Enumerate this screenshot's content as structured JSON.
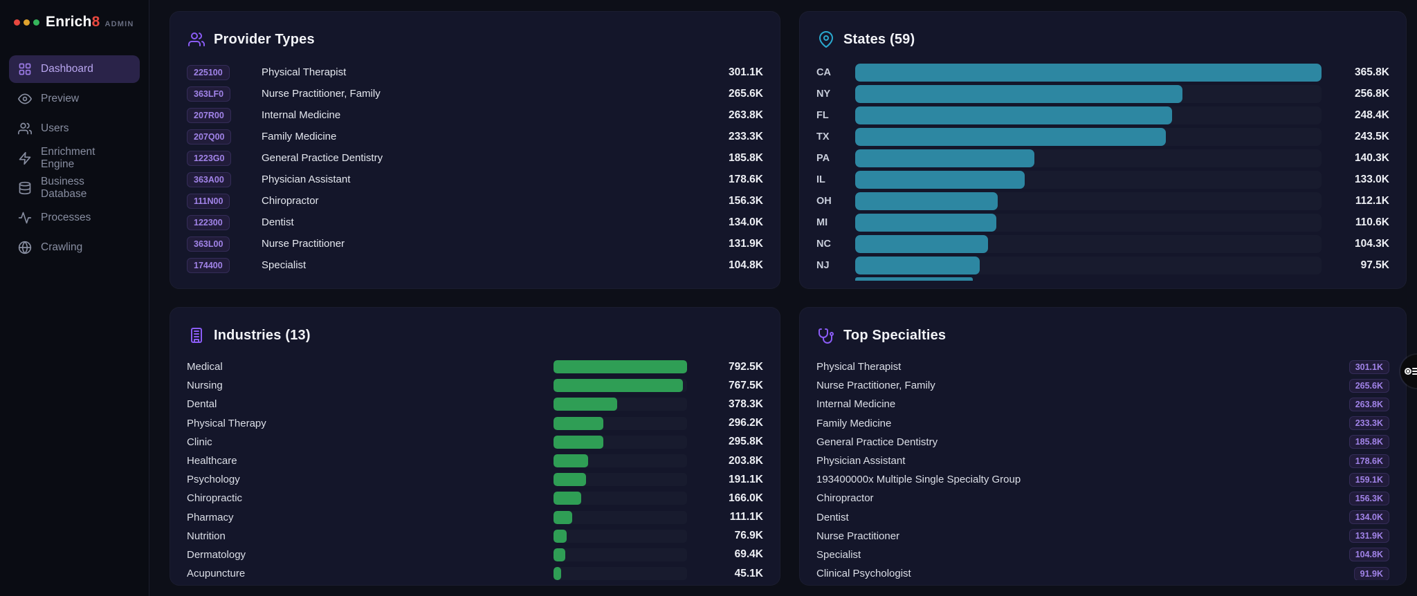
{
  "brand": {
    "name": "Enrich",
    "eight": "8",
    "suffix": "ADMIN"
  },
  "sidebar": {
    "items": [
      {
        "id": "dashboard",
        "label": "Dashboard",
        "icon": "grid-icon",
        "active": true
      },
      {
        "id": "preview",
        "label": "Preview",
        "icon": "eye-icon",
        "active": false
      },
      {
        "id": "users",
        "label": "Users",
        "icon": "users-icon",
        "active": false
      },
      {
        "id": "enrichment-engine",
        "label": "Enrichment Engine",
        "icon": "zap-icon",
        "active": false
      },
      {
        "id": "business-database",
        "label": "Business Database",
        "icon": "database-icon",
        "active": false
      },
      {
        "id": "processes",
        "label": "Processes",
        "icon": "activity-icon",
        "active": false
      },
      {
        "id": "crawling",
        "label": "Crawling",
        "icon": "globe-icon",
        "active": false
      }
    ]
  },
  "cards": {
    "provider_types": {
      "title": "Provider Types",
      "icon": "users-icon",
      "rows": [
        {
          "code": "225100",
          "name": "Physical Therapist",
          "value": "301.1K"
        },
        {
          "code": "363LF0",
          "name": "Nurse Practitioner, Family",
          "value": "265.6K"
        },
        {
          "code": "207R00",
          "name": "Internal Medicine",
          "value": "263.8K"
        },
        {
          "code": "207Q00",
          "name": "Family Medicine",
          "value": "233.3K"
        },
        {
          "code": "1223G0",
          "name": "General Practice Dentistry",
          "value": "185.8K"
        },
        {
          "code": "363A00",
          "name": "Physician Assistant",
          "value": "178.6K"
        },
        {
          "code": "111N00",
          "name": "Chiropractor",
          "value": "156.3K"
        },
        {
          "code": "122300",
          "name": "Dentist",
          "value": "134.0K"
        },
        {
          "code": "363L00",
          "name": "Nurse Practitioner",
          "value": "131.9K"
        },
        {
          "code": "174400",
          "name": "Specialist",
          "value": "104.8K"
        }
      ]
    },
    "states": {
      "title": "States (59)",
      "icon": "map-pin-icon",
      "bar_color": "#2d87a2",
      "max": 365.8,
      "rows": [
        {
          "label": "CA",
          "num": 365.8,
          "value": "365.8K"
        },
        {
          "label": "NY",
          "num": 256.8,
          "value": "256.8K"
        },
        {
          "label": "FL",
          "num": 248.4,
          "value": "248.4K"
        },
        {
          "label": "TX",
          "num": 243.5,
          "value": "243.5K"
        },
        {
          "label": "PA",
          "num": 140.3,
          "value": "140.3K"
        },
        {
          "label": "IL",
          "num": 133.0,
          "value": "133.0K"
        },
        {
          "label": "OH",
          "num": 112.1,
          "value": "112.1K"
        },
        {
          "label": "MI",
          "num": 110.6,
          "value": "110.6K"
        },
        {
          "label": "NC",
          "num": 104.3,
          "value": "104.3K"
        },
        {
          "label": "NJ",
          "num": 97.5,
          "value": "97.5K"
        }
      ]
    },
    "industries": {
      "title": "Industries (13)",
      "icon": "building-icon",
      "bar_color": "#2f9e55",
      "max": 792.5,
      "rows": [
        {
          "name": "Medical",
          "num": 792.5,
          "value": "792.5K"
        },
        {
          "name": "Nursing",
          "num": 767.5,
          "value": "767.5K"
        },
        {
          "name": "Dental",
          "num": 378.3,
          "value": "378.3K"
        },
        {
          "name": "Physical Therapy",
          "num": 296.2,
          "value": "296.2K"
        },
        {
          "name": "Clinic",
          "num": 295.8,
          "value": "295.8K"
        },
        {
          "name": "Healthcare",
          "num": 203.8,
          "value": "203.8K"
        },
        {
          "name": "Psychology",
          "num": 191.1,
          "value": "191.1K"
        },
        {
          "name": "Chiropractic",
          "num": 166.0,
          "value": "166.0K"
        },
        {
          "name": "Pharmacy",
          "num": 111.1,
          "value": "111.1K"
        },
        {
          "name": "Nutrition",
          "num": 76.9,
          "value": "76.9K"
        },
        {
          "name": "Dermatology",
          "num": 69.4,
          "value": "69.4K"
        },
        {
          "name": "Acupuncture",
          "num": 45.1,
          "value": "45.1K"
        }
      ]
    },
    "top_specialties": {
      "title": "Top Specialties",
      "icon": "stethoscope-icon",
      "rows": [
        {
          "name": "Physical Therapist",
          "value": "301.1K"
        },
        {
          "name": "Nurse Practitioner, Family",
          "value": "265.6K"
        },
        {
          "name": "Internal Medicine",
          "value": "263.8K"
        },
        {
          "name": "Family Medicine",
          "value": "233.3K"
        },
        {
          "name": "General Practice Dentistry",
          "value": "185.8K"
        },
        {
          "name": "Physician Assistant",
          "value": "178.6K"
        },
        {
          "name": "193400000x Multiple Single Specialty Group",
          "value": "159.1K"
        },
        {
          "name": "Chiropractor",
          "value": "156.3K"
        },
        {
          "name": "Dentist",
          "value": "134.0K"
        },
        {
          "name": "Nurse Practitioner",
          "value": "131.9K"
        },
        {
          "name": "Specialist",
          "value": "104.8K"
        },
        {
          "name": "Clinical Psychologist",
          "value": "91.9K"
        }
      ]
    }
  },
  "colors": {
    "accent_purple": "#8b5cf6",
    "teal_bar": "#2d87a2",
    "green_bar": "#2f9e55",
    "badge_purple": "#a183e8",
    "card_bg": "#14162a"
  }
}
